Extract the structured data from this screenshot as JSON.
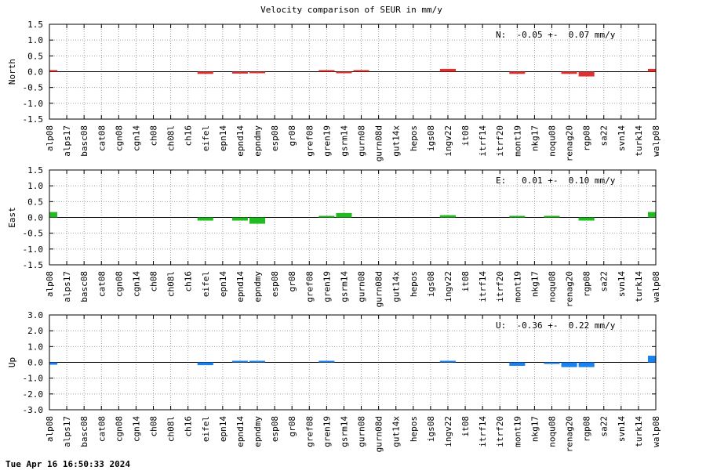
{
  "title": "Velocity comparison of SEUR in mm/y",
  "footer": "Tue Apr 16 16:50:33 2024",
  "chart_data": [
    {
      "type": "bar",
      "ylabel": "North",
      "annotation": "N:  -0.05 +-  0.07 mm/y",
      "color": "#e03030",
      "ylim": [
        -1.5,
        1.5
      ],
      "yticks": [
        -1.5,
        -1.0,
        -0.5,
        0.0,
        0.5,
        1.0,
        1.5
      ],
      "ytick_labels": [
        "-1.5",
        "-1.0",
        "-0.5",
        "0.0",
        "0.5",
        "1.0",
        "1.5"
      ],
      "categories": [
        "alp08",
        "alps17",
        "basc08",
        "cat08",
        "cgn08",
        "cgn14",
        "ch08",
        "ch08l",
        "ch16",
        "eifel",
        "epn14",
        "epnd14",
        "epndmy",
        "esp08",
        "gr08",
        "gref08",
        "gren19",
        "gsrm14",
        "gurn08",
        "gurn08d",
        "gut14x",
        "hepos",
        "igs08",
        "ingv22",
        "it08",
        "itrf14",
        "itrf20",
        "mont19",
        "nkg17",
        "noqu08",
        "renag20",
        "rgp08",
        "sa22",
        "svn14",
        "turk14",
        "walp08"
      ],
      "values": [
        0.05,
        0,
        0,
        0,
        0,
        0,
        0,
        0,
        0,
        -0.07,
        0,
        -0.06,
        -0.03,
        0,
        0,
        0,
        0.02,
        -0.03,
        0.04,
        0,
        0,
        0,
        0,
        0.09,
        0,
        0,
        0,
        -0.07,
        0,
        0,
        -0.07,
        -0.15,
        0,
        0,
        0,
        0.09
      ]
    },
    {
      "type": "bar",
      "ylabel": "East",
      "annotation": "E:   0.01 +-  0.10 mm/y",
      "color": "#22bb22",
      "ylim": [
        -1.5,
        1.5
      ],
      "yticks": [
        -1.5,
        -1.0,
        -0.5,
        0.0,
        0.5,
        1.0,
        1.5
      ],
      "ytick_labels": [
        "-1.5",
        "-1.0",
        "-0.5",
        "0.0",
        "0.5",
        "1.0",
        "1.5"
      ],
      "categories": [
        "alp08",
        "alps17",
        "basc08",
        "cat08",
        "cgn08",
        "cgn14",
        "ch08",
        "ch08l",
        "ch16",
        "eifel",
        "epn14",
        "epnd14",
        "epndmy",
        "esp08",
        "gr08",
        "gref08",
        "gren19",
        "gsrm14",
        "gurn08",
        "gurn08d",
        "gut14x",
        "hepos",
        "igs08",
        "ingv22",
        "it08",
        "itrf14",
        "itrf20",
        "mont19",
        "nkg17",
        "noqu08",
        "renag20",
        "rgp08",
        "sa22",
        "svn14",
        "turk14",
        "walp08"
      ],
      "values": [
        0.17,
        0,
        0,
        0,
        0,
        0,
        0,
        0,
        0,
        -0.1,
        0,
        -0.1,
        -0.2,
        0,
        0,
        0,
        0.04,
        0.14,
        0,
        0,
        0,
        0,
        0,
        0.07,
        0,
        0,
        0,
        0.04,
        0,
        0.04,
        0,
        -0.1,
        0,
        0,
        0,
        0.17
      ]
    },
    {
      "type": "bar",
      "ylabel": "Up",
      "annotation": "U:  -0.36 +-  0.22 mm/y",
      "color": "#1a82f0",
      "ylim": [
        -3.0,
        3.0
      ],
      "yticks": [
        -3.0,
        -2.0,
        -1.0,
        0.0,
        1.0,
        2.0,
        3.0
      ],
      "ytick_labels": [
        "-3.0",
        "-2.0",
        "-1.0",
        "0.0",
        "1.0",
        "2.0",
        "3.0"
      ],
      "categories": [
        "alp08",
        "alps17",
        "basc08",
        "cat08",
        "cgn08",
        "cgn14",
        "ch08",
        "ch08l",
        "ch16",
        "eifel",
        "epn14",
        "epnd14",
        "epndmy",
        "esp08",
        "gr08",
        "gref08",
        "gren19",
        "gsrm14",
        "gurn08",
        "gurn08d",
        "gut14x",
        "hepos",
        "igs08",
        "ingv22",
        "it08",
        "itrf14",
        "itrf20",
        "mont19",
        "nkg17",
        "noqu08",
        "renag20",
        "rgp08",
        "sa22",
        "svn14",
        "turk14",
        "walp08"
      ],
      "values": [
        -0.15,
        0,
        0,
        0,
        0,
        0,
        0,
        0,
        0,
        -0.18,
        0,
        0.05,
        0.09,
        0,
        0,
        0,
        0.05,
        0,
        0,
        0,
        0,
        0,
        0,
        0.09,
        0,
        0,
        0,
        -0.22,
        0,
        -0.1,
        -0.3,
        -0.3,
        0,
        0,
        0,
        0.42
      ]
    }
  ]
}
